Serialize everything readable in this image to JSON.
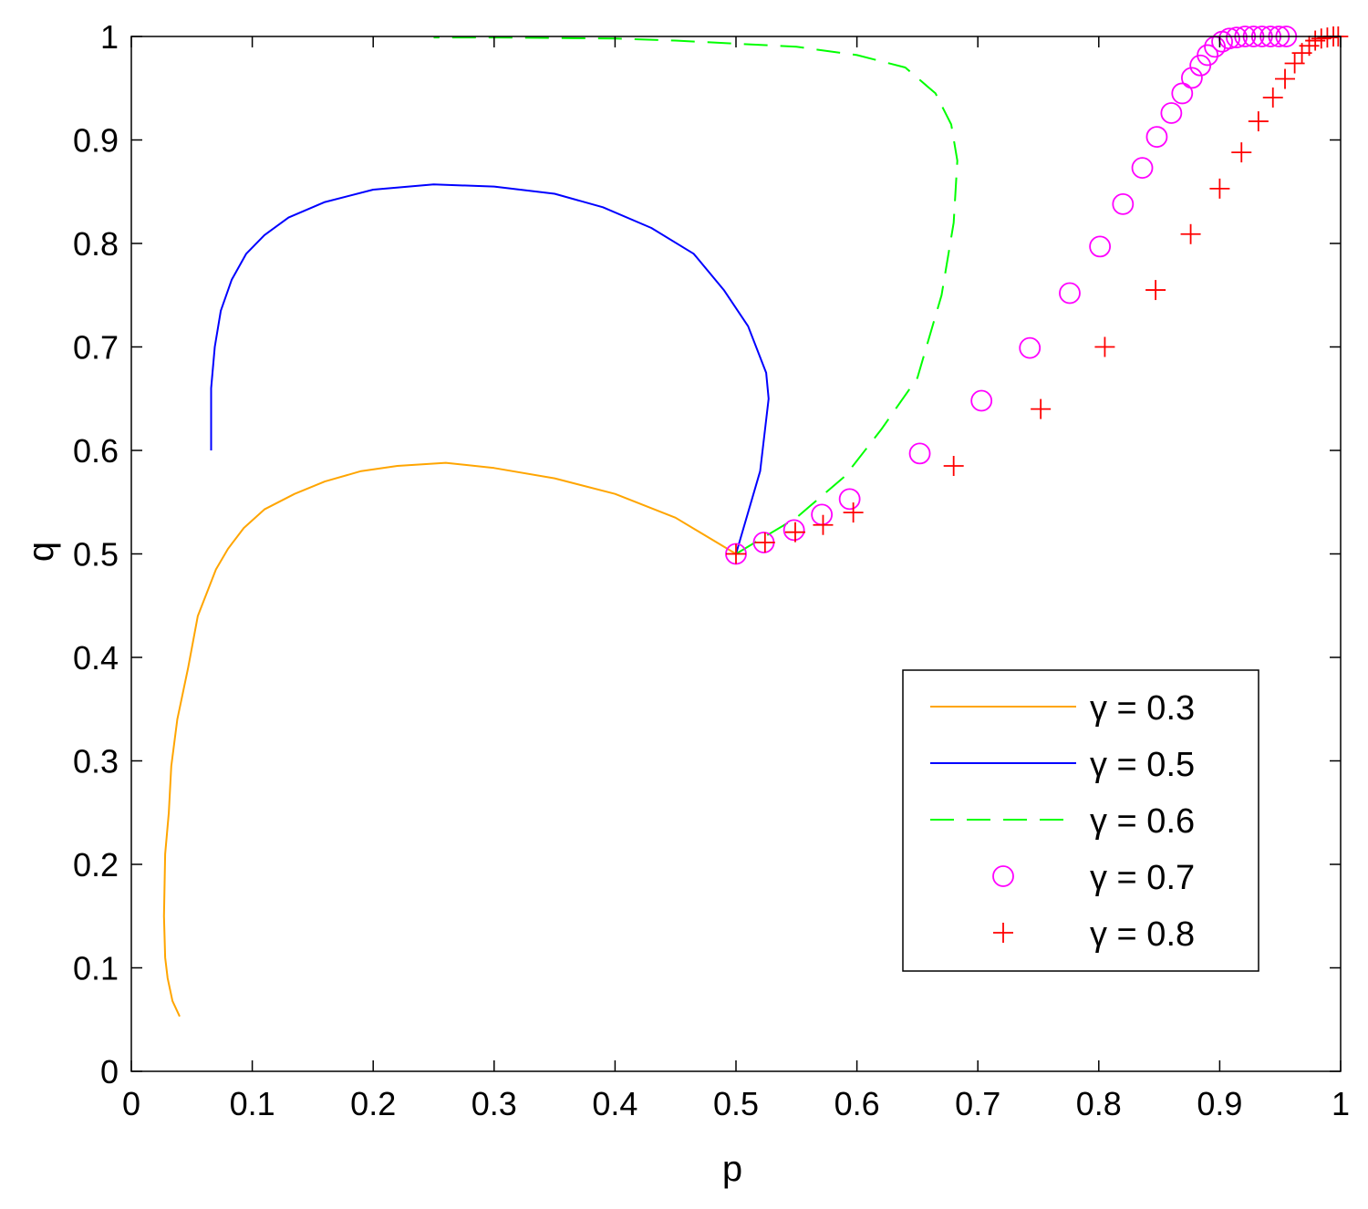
{
  "chart_data": {
    "type": "line",
    "title": "",
    "xlabel": "p",
    "ylabel": "q",
    "xlim": [
      0,
      1
    ],
    "ylim": [
      0,
      1
    ],
    "grid": false,
    "legend_position": "bottom-right",
    "x_ticks": [
      "0",
      "0.1",
      "0.2",
      "0.3",
      "0.4",
      "0.5",
      "0.6",
      "0.7",
      "0.8",
      "0.9",
      "1"
    ],
    "y_ticks": [
      "0",
      "0.1",
      "0.2",
      "0.3",
      "0.4",
      "0.5",
      "0.6",
      "0.7",
      "0.8",
      "0.9",
      "1"
    ],
    "series": [
      {
        "name": "γ = 0.3",
        "style": "solid-line",
        "color": "#FFA500",
        "points": [
          [
            0.5,
            0.5
          ],
          [
            0.45,
            0.535
          ],
          [
            0.4,
            0.558
          ],
          [
            0.35,
            0.573
          ],
          [
            0.3,
            0.583
          ],
          [
            0.26,
            0.588
          ],
          [
            0.22,
            0.585
          ],
          [
            0.19,
            0.58
          ],
          [
            0.16,
            0.57
          ],
          [
            0.135,
            0.558
          ],
          [
            0.11,
            0.543
          ],
          [
            0.093,
            0.525
          ],
          [
            0.08,
            0.505
          ],
          [
            0.07,
            0.485
          ],
          [
            0.055,
            0.44
          ],
          [
            0.047,
            0.39
          ],
          [
            0.038,
            0.34
          ],
          [
            0.033,
            0.295
          ],
          [
            0.031,
            0.25
          ],
          [
            0.028,
            0.21
          ],
          [
            0.027,
            0.15
          ],
          [
            0.028,
            0.11
          ],
          [
            0.03,
            0.09
          ],
          [
            0.034,
            0.068
          ],
          [
            0.04,
            0.053
          ]
        ]
      },
      {
        "name": "γ = 0.5",
        "style": "solid-line",
        "color": "#0000FF",
        "points": [
          [
            0.5,
            0.5
          ],
          [
            0.52,
            0.58
          ],
          [
            0.527,
            0.65
          ],
          [
            0.525,
            0.675
          ],
          [
            0.51,
            0.72
          ],
          [
            0.49,
            0.755
          ],
          [
            0.465,
            0.79
          ],
          [
            0.43,
            0.815
          ],
          [
            0.39,
            0.835
          ],
          [
            0.35,
            0.848
          ],
          [
            0.3,
            0.855
          ],
          [
            0.25,
            0.857
          ],
          [
            0.2,
            0.852
          ],
          [
            0.16,
            0.84
          ],
          [
            0.13,
            0.825
          ],
          [
            0.11,
            0.808
          ],
          [
            0.095,
            0.79
          ],
          [
            0.083,
            0.765
          ],
          [
            0.074,
            0.735
          ],
          [
            0.069,
            0.7
          ],
          [
            0.066,
            0.66
          ],
          [
            0.066,
            0.6
          ]
        ]
      },
      {
        "name": "γ = 0.6",
        "style": "dashed-line",
        "color": "#00FF00",
        "points": [
          [
            0.5,
            0.5
          ],
          [
            0.55,
            0.535
          ],
          [
            0.59,
            0.575
          ],
          [
            0.62,
            0.62
          ],
          [
            0.65,
            0.67
          ],
          [
            0.67,
            0.75
          ],
          [
            0.68,
            0.82
          ],
          [
            0.683,
            0.88
          ],
          [
            0.678,
            0.915
          ],
          [
            0.665,
            0.945
          ],
          [
            0.64,
            0.97
          ],
          [
            0.6,
            0.982
          ],
          [
            0.55,
            0.99
          ],
          [
            0.5,
            0.993
          ],
          [
            0.45,
            0.996
          ],
          [
            0.4,
            0.998
          ],
          [
            0.3,
            0.999
          ],
          [
            0.25,
            0.999
          ]
        ]
      },
      {
        "name": "γ = 0.7",
        "style": "circle-markers",
        "color": "#FF00FF",
        "points": [
          [
            0.5,
            0.5
          ],
          [
            0.523,
            0.511
          ],
          [
            0.548,
            0.523
          ],
          [
            0.571,
            0.538
          ],
          [
            0.594,
            0.553
          ],
          [
            0.652,
            0.597
          ],
          [
            0.703,
            0.648
          ],
          [
            0.743,
            0.699
          ],
          [
            0.776,
            0.752
          ],
          [
            0.801,
            0.797
          ],
          [
            0.82,
            0.838
          ],
          [
            0.836,
            0.873
          ],
          [
            0.848,
            0.903
          ],
          [
            0.86,
            0.926
          ],
          [
            0.869,
            0.945
          ],
          [
            0.877,
            0.96
          ],
          [
            0.884,
            0.972
          ],
          [
            0.89,
            0.982
          ],
          [
            0.896,
            0.99
          ],
          [
            0.902,
            0.995
          ],
          [
            0.908,
            0.998
          ],
          [
            0.914,
            0.999
          ],
          [
            0.921,
            1.0
          ],
          [
            0.928,
            1.0
          ],
          [
            0.935,
            1.0
          ],
          [
            0.942,
            1.0
          ],
          [
            0.949,
            1.0
          ],
          [
            0.955,
            1.0
          ]
        ]
      },
      {
        "name": "γ = 0.8",
        "style": "plus-markers",
        "color": "#FF0000",
        "points": [
          [
            0.5,
            0.5
          ],
          [
            0.524,
            0.511
          ],
          [
            0.549,
            0.521
          ],
          [
            0.572,
            0.528
          ],
          [
            0.597,
            0.54
          ],
          [
            0.68,
            0.585
          ],
          [
            0.752,
            0.64
          ],
          [
            0.805,
            0.7
          ],
          [
            0.847,
            0.755
          ],
          [
            0.876,
            0.809
          ],
          [
            0.9,
            0.853
          ],
          [
            0.918,
            0.888
          ],
          [
            0.932,
            0.918
          ],
          [
            0.944,
            0.941
          ],
          [
            0.954,
            0.959
          ],
          [
            0.962,
            0.974
          ],
          [
            0.968,
            0.984
          ],
          [
            0.974,
            0.991
          ],
          [
            0.979,
            0.996
          ],
          [
            0.984,
            0.998
          ],
          [
            0.989,
            0.999
          ],
          [
            0.994,
            1.0
          ],
          [
            0.998,
            1.0
          ]
        ]
      }
    ]
  }
}
